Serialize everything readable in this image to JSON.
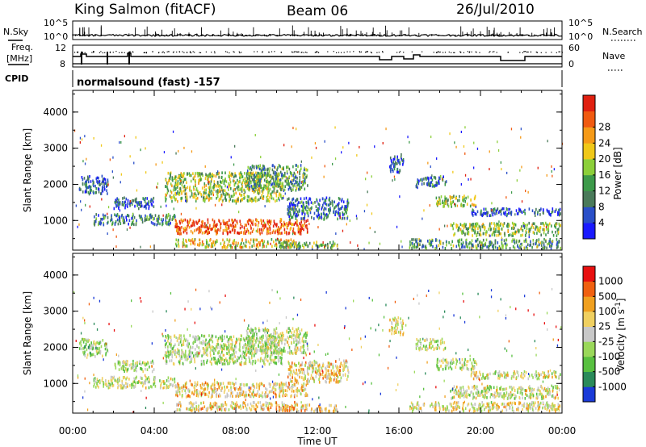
{
  "header": {
    "station": "King Salmon (fitACF)",
    "beam": "Beam 06",
    "date": "26/Jul/2010"
  },
  "side_labels": {
    "nsky": "N.Sky",
    "nsearch": "N.Search",
    "freq_line1": "Freq.",
    "freq_line2": "[MHz]",
    "nave": "Nave",
    "cpid": "CPID"
  },
  "cpid_text": "normalsound (fast) -157",
  "top_axes": {
    "noise_ticks": [
      "10^5",
      "10^0"
    ],
    "noise_right_ticks": [
      "10^5",
      "10^0"
    ],
    "freq_ticks": [
      "12",
      "8"
    ],
    "nave_ticks": [
      "60",
      "0"
    ]
  },
  "x_ticks": [
    "00:00",
    "04:00",
    "08:00",
    "12:00",
    "16:00",
    "20:00",
    "00:00"
  ],
  "xlabel": "Time UT",
  "chart_data": [
    {
      "type": "heatmap",
      "name": "power",
      "ylabel": "Slant Range [km]",
      "y_ticks": [
        1000,
        2000,
        3000,
        4000
      ],
      "ylim": [
        180,
        4600
      ],
      "xlim": [
        0,
        24
      ],
      "colorbar_label": "Power [dB]",
      "colorbar_ticks": [
        "4",
        "8",
        "12",
        "16",
        "20",
        "24",
        "28"
      ],
      "colorbar_colors": [
        "#1a1aff",
        "#2a4fc8",
        "#4a7a5a",
        "#3d9a4a",
        "#8ccf3a",
        "#f0c818",
        "#f59a18",
        "#f05a10",
        "#e02010"
      ],
      "bands": [
        {
          "t0": 0.3,
          "t1": 1.7,
          "r0": 1700,
          "r1": 2200,
          "level": 0.2
        },
        {
          "t0": 1.0,
          "t1": 5.0,
          "r0": 850,
          "r1": 1150,
          "level": 0.3
        },
        {
          "t0": 2.0,
          "t1": 4.0,
          "r0": 1300,
          "r1": 1600,
          "level": 0.2
        },
        {
          "t0": 4.5,
          "t1": 10.3,
          "r0": 1500,
          "r1": 2300,
          "level": 0.5
        },
        {
          "t0": 8.5,
          "t1": 11.5,
          "r0": 1800,
          "r1": 2500,
          "level": 0.35
        },
        {
          "t0": 5.0,
          "t1": 11.5,
          "r0": 600,
          "r1": 1000,
          "level": 0.85
        },
        {
          "t0": 10.5,
          "t1": 13.5,
          "r0": 1000,
          "r1": 1600,
          "level": 0.25
        },
        {
          "t0": 5.0,
          "t1": 11.0,
          "r0": 220,
          "r1": 450,
          "level": 0.6
        },
        {
          "t0": 10.0,
          "t1": 13.0,
          "r0": 200,
          "r1": 380,
          "level": 0.4
        },
        {
          "t0": 15.5,
          "t1": 16.2,
          "r0": 2300,
          "r1": 2800,
          "level": 0.2
        },
        {
          "t0": 17.8,
          "t1": 19.8,
          "r0": 1350,
          "r1": 1650,
          "level": 0.5
        },
        {
          "t0": 16.8,
          "t1": 18.3,
          "r0": 1900,
          "r1": 2200,
          "level": 0.25
        },
        {
          "t0": 18.5,
          "t1": 23.9,
          "r0": 550,
          "r1": 900,
          "level": 0.45
        },
        {
          "t0": 16.5,
          "t1": 23.9,
          "r0": 200,
          "r1": 450,
          "level": 0.35
        },
        {
          "t0": 19.5,
          "t1": 23.9,
          "r0": 1100,
          "r1": 1300,
          "level": 0.15
        }
      ]
    },
    {
      "type": "heatmap",
      "name": "velocity",
      "ylabel": "Slant Range [km]",
      "y_ticks": [
        1000,
        2000,
        3000,
        4000
      ],
      "ylim": [
        180,
        4600
      ],
      "xlim": [
        0,
        24
      ],
      "colorbar_label": "Velocity [m s^-1]",
      "colorbar_ticks": [
        "1000",
        "500",
        "100",
        "25",
        "-25",
        "-100",
        "-500",
        "-1000"
      ],
      "colorbar_colors": [
        "#1a3ad8",
        "#2a8a5a",
        "#58c040",
        "#9ad85a",
        "#c8c8c8",
        "#f0d060",
        "#f0a020",
        "#f06010",
        "#e81010"
      ],
      "bands": [
        {
          "t0": 0.3,
          "t1": 1.7,
          "r0": 1700,
          "r1": 2200,
          "level": 0.4
        },
        {
          "t0": 1.0,
          "t1": 5.0,
          "r0": 850,
          "r1": 1150,
          "level": 0.45
        },
        {
          "t0": 2.0,
          "t1": 4.0,
          "r0": 1300,
          "r1": 1600,
          "level": 0.45
        },
        {
          "t0": 4.5,
          "t1": 10.3,
          "r0": 1500,
          "r1": 2300,
          "level": 0.45
        },
        {
          "t0": 8.5,
          "t1": 11.5,
          "r0": 1800,
          "r1": 2500,
          "level": 0.45
        },
        {
          "t0": 5.0,
          "t1": 11.5,
          "r0": 600,
          "r1": 1000,
          "level": 0.6
        },
        {
          "t0": 10.5,
          "t1": 13.5,
          "r0": 1000,
          "r1": 1600,
          "level": 0.6
        },
        {
          "t0": 5.0,
          "t1": 11.0,
          "r0": 220,
          "r1": 450,
          "level": 0.6
        },
        {
          "t0": 10.0,
          "t1": 13.0,
          "r0": 200,
          "r1": 380,
          "level": 0.65
        },
        {
          "t0": 15.5,
          "t1": 16.2,
          "r0": 2300,
          "r1": 2800,
          "level": 0.55
        },
        {
          "t0": 17.8,
          "t1": 19.8,
          "r0": 1350,
          "r1": 1650,
          "level": 0.45
        },
        {
          "t0": 16.8,
          "t1": 18.3,
          "r0": 1900,
          "r1": 2200,
          "level": 0.45
        },
        {
          "t0": 18.5,
          "t1": 23.9,
          "r0": 550,
          "r1": 900,
          "level": 0.5
        },
        {
          "t0": 16.5,
          "t1": 23.9,
          "r0": 200,
          "r1": 450,
          "level": 0.55
        },
        {
          "t0": 19.5,
          "t1": 23.9,
          "r0": 1100,
          "r1": 1300,
          "level": 0.5
        }
      ]
    }
  ]
}
